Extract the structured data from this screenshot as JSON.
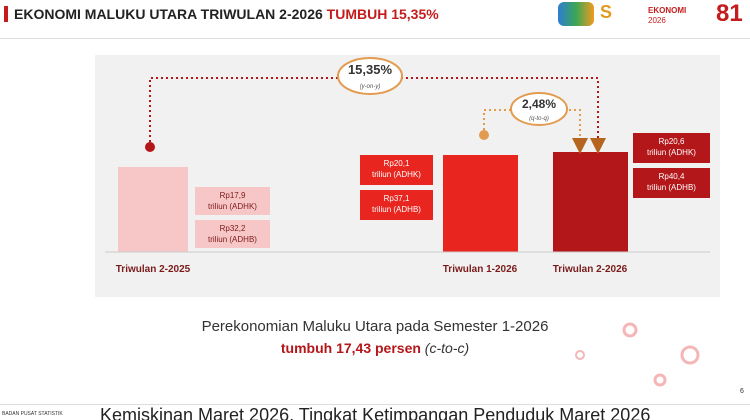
{
  "header": {
    "title": "EKONOMI MALUKU UTARA TRIWULAN 2-2026",
    "highlight": "TUMBUH 15,35%",
    "logo_text": "EKONOMI",
    "logo_year": "2026"
  },
  "growth": {
    "yoy": {
      "value": "15,35%",
      "label": "(y-on-y)"
    },
    "qtq": {
      "value": "2,48%",
      "label": "(q-to-q)"
    }
  },
  "periods": [
    {
      "label": "Triwulan 2-2025",
      "adhk": {
        "value": "Rp17,9",
        "unit": "triliun (ADHK)"
      },
      "adhb": {
        "value": "Rp32,2",
        "unit": "triliun (ADHB)"
      }
    },
    {
      "label": "Triwulan 1-2026",
      "adhk": {
        "value": "Rp20,1",
        "unit": "triliun (ADHK)"
      },
      "adhb": {
        "value": "Rp37,1",
        "unit": "triliun (ADHB)"
      }
    },
    {
      "label": "Triwulan 2-2026",
      "adhk": {
        "value": "Rp20,6",
        "unit": "triliun (ADHK)"
      },
      "adhb": {
        "value": "Rp40,4",
        "unit": "triliun (ADHB)"
      }
    }
  ],
  "caption": {
    "line1": "Perekonomian Maluku Utara pada Semester 1-2026",
    "line2": "tumbuh 17,43 persen",
    "line2_note": "(c-to-c)"
  },
  "page_number": "6",
  "footer": {
    "agency": "BADAN PUSAT STATISTIK",
    "ticker": "Kemiskinan Maret 2026, Tingkat Ketimpangan Penduduk Maret 2026"
  }
}
